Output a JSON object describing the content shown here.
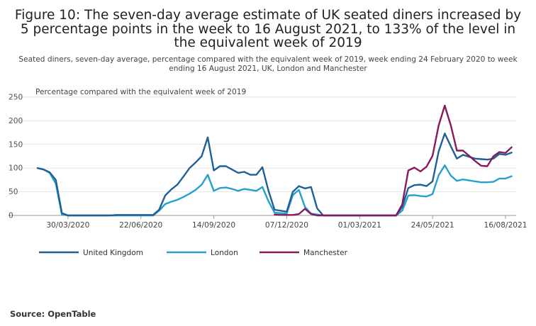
{
  "title": "Figure 10: The seven-day average estimate of UK seated diners increased by 5 percentage points in the week to 16 August 2021, to 133% of the level in the equivalent week of 2019",
  "subtitle": "Seated diners, seven-day average, percentage compared with the equivalent week of 2019, week ending 24 February 2020 to week ending 16 August 2021, UK, London and Manchester",
  "source": "Source: OpenTable",
  "chart_data": {
    "type": "line",
    "ylabel": "Percentage compared with the equivalent week of 2019",
    "ylim": [
      0,
      250
    ],
    "yticks": [
      0,
      50,
      100,
      150,
      200,
      250
    ],
    "xlim": [
      0,
      77
    ],
    "xticks": [
      {
        "i": 5,
        "label": "30/03/2020"
      },
      {
        "i": 17,
        "label": "22/06/2020"
      },
      {
        "i": 29,
        "label": "14/09/2020"
      },
      {
        "i": 41,
        "label": "07/12/2020"
      },
      {
        "i": 53,
        "label": "01/03/2021"
      },
      {
        "i": 65,
        "label": "24/05/2021"
      },
      {
        "i": 77,
        "label": "16/08/2021"
      }
    ],
    "legend_position": "bottom",
    "grid": "horizontal",
    "series": [
      {
        "name": "United Kingdom",
        "color": "#206095",
        "values": [
          100,
          97,
          91,
          75,
          5,
          0,
          0,
          0,
          0,
          0,
          0,
          0,
          0,
          1,
          1,
          1,
          1,
          1,
          1,
          1,
          12,
          42,
          55,
          65,
          82,
          100,
          112,
          125,
          165,
          95,
          104,
          104,
          97,
          90,
          92,
          86,
          86,
          102,
          52,
          12,
          10,
          8,
          50,
          62,
          57,
          60,
          15,
          0,
          0,
          0,
          0,
          0,
          0,
          0,
          0,
          0,
          0,
          0,
          0,
          0,
          18,
          58,
          64,
          65,
          62,
          72,
          135,
          173,
          146,
          120,
          128,
          124,
          120,
          119,
          118,
          120,
          130,
          128,
          133
        ]
      },
      {
        "name": "London",
        "color": "#27a0cc",
        "values": [
          100,
          97,
          90,
          67,
          2,
          0,
          0,
          0,
          0,
          0,
          0,
          0,
          0,
          0,
          0,
          0,
          0,
          0,
          0,
          0,
          10,
          24,
          29,
          33,
          39,
          46,
          54,
          65,
          86,
          52,
          58,
          59,
          56,
          52,
          56,
          54,
          52,
          60,
          30,
          6,
          5,
          4,
          43,
          54,
          18,
          4,
          2,
          0,
          0,
          0,
          0,
          0,
          0,
          0,
          0,
          0,
          0,
          0,
          0,
          0,
          10,
          42,
          43,
          41,
          40,
          45,
          85,
          106,
          84,
          73,
          76,
          74,
          72,
          70,
          70,
          71,
          78,
          78,
          83
        ]
      },
      {
        "name": "Manchester",
        "color": "#871a5b",
        "values": [
          null,
          null,
          null,
          null,
          null,
          null,
          null,
          null,
          null,
          null,
          null,
          null,
          null,
          null,
          null,
          null,
          null,
          null,
          null,
          null,
          null,
          null,
          null,
          null,
          null,
          null,
          null,
          null,
          null,
          null,
          null,
          null,
          null,
          null,
          null,
          null,
          null,
          null,
          null,
          2,
          1,
          1,
          1,
          3,
          14,
          3,
          0,
          0,
          0,
          0,
          0,
          0,
          0,
          0,
          0,
          0,
          0,
          0,
          0,
          0,
          23,
          95,
          101,
          93,
          103,
          126,
          190,
          232,
          190,
          137,
          137,
          126,
          115,
          105,
          104,
          125,
          134,
          132,
          144
        ]
      }
    ]
  }
}
